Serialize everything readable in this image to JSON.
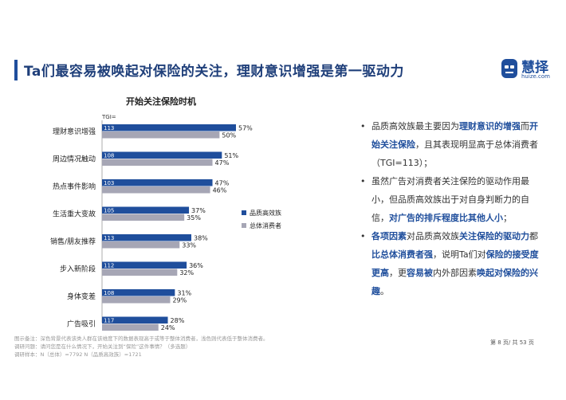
{
  "header": {
    "title": "Ta们最容易被唤起对保险的关注，理财意识增强是第一驱动力"
  },
  "logo": {
    "text": "慧择",
    "url": "huize.com",
    "color": "#1f4e9c"
  },
  "chart_data": {
    "type": "bar",
    "orientation": "horizontal",
    "title": "开始关注保险时机",
    "tgi_label": "TGI=",
    "categories": [
      "理财意识增强",
      "周边情况触动",
      "热点事件影响",
      "生活重大变故",
      "销售/朋友推荐",
      "步入新阶段",
      "身体变差",
      "广告吸引"
    ],
    "series": [
      {
        "name": "品质高效族",
        "color": "#1f4e9c",
        "values": [
          57,
          51,
          47,
          37,
          38,
          36,
          31,
          28
        ],
        "tgi": [
          113,
          108,
          103,
          105,
          113,
          112,
          108,
          117
        ]
      },
      {
        "name": "总体消费者",
        "color": "#a6a6b5",
        "values": [
          50,
          47,
          46,
          35,
          33,
          32,
          29,
          24
        ]
      }
    ],
    "value_suffix": "%",
    "legend": "right",
    "xlim": [
      0,
      60
    ],
    "grid": false
  },
  "bullets": [
    {
      "parts": [
        {
          "t": "品质高效族最主要因为",
          "h": false
        },
        {
          "t": "理财意识的增强",
          "h": true
        },
        {
          "t": "而",
          "h": false
        },
        {
          "t": "开始关注保险",
          "h": true
        },
        {
          "t": "，且其表现明显高于总体消费者（TGI=113）；",
          "h": false
        }
      ]
    },
    {
      "parts": [
        {
          "t": "虽然广告对消费者关注保险的驱动作用最小，但品质高效族出于对自身判断力的自信，",
          "h": false
        },
        {
          "t": "对广告的排斥程度比其他人小",
          "h": true
        },
        {
          "t": "；",
          "h": false
        }
      ]
    },
    {
      "parts": [
        {
          "t": "各项因素",
          "h": true
        },
        {
          "t": "对品质高效族",
          "h": false
        },
        {
          "t": "关注保险的驱动力",
          "h": true
        },
        {
          "t": "都",
          "h": false
        },
        {
          "t": "比总体消费者强",
          "h": true
        },
        {
          "t": "，说明Ta们对",
          "h": false
        },
        {
          "t": "保险的接受度更高",
          "h": true
        },
        {
          "t": "，更",
          "h": false
        },
        {
          "t": "容易被",
          "h": true
        },
        {
          "t": "内外部因素",
          "h": false
        },
        {
          "t": "唤起对保险的兴趣",
          "h": true
        },
        {
          "t": "。",
          "h": false
        }
      ]
    }
  ],
  "footer": {
    "notes": [
      "图示备注：深色背景代表该类人群在该维度下的数据表现高于或等于整体消费者，浅色则代表低于整体消费者。",
      "调研问题：请问您是在什么情况下，开始关注到“保险”这件事情？（多选题）",
      "调研样本：N（总体）=7792    N（品质高效族）=1721"
    ],
    "page": "第 8 页/ 共 53 页"
  }
}
